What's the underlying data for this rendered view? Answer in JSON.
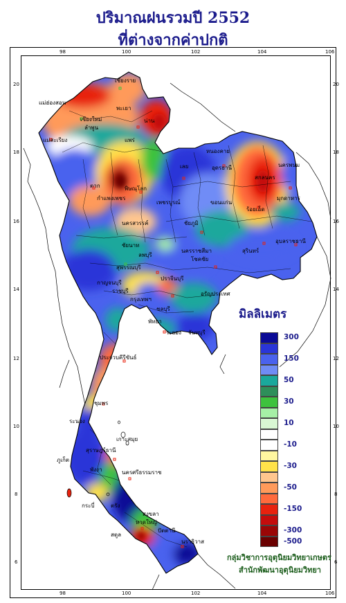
{
  "title_line1": "ปริมาณฝนรวมปี 2552",
  "title_line2": "ที่ต่างจากค่าปกติ",
  "x_ticks": [
    "98",
    "100",
    "102",
    "104",
    "106"
  ],
  "y_ticks": [
    "20",
    "18",
    "16",
    "14",
    "12",
    "10",
    "8",
    "6"
  ],
  "legend": {
    "title": "มิลลิเมตร",
    "items": [
      {
        "label": "300",
        "color": "#0a0a96"
      },
      {
        "label": "",
        "color": "#2a35d8"
      },
      {
        "label": "150",
        "color": "#4a62ee"
      },
      {
        "label": "",
        "color": "#6f8cf6"
      },
      {
        "label": "50",
        "color": "#1aa89c"
      },
      {
        "label": "",
        "color": "#2e8f5a"
      },
      {
        "label": "30",
        "color": "#3ec23e"
      },
      {
        "label": "",
        "color": "#a6f0a6"
      },
      {
        "label": "10",
        "color": "#d9f7d3"
      },
      {
        "label": "",
        "color": "#ffffff"
      },
      {
        "label": "-10",
        "color": "#ffffff"
      },
      {
        "label": "",
        "color": "#fff7a0"
      },
      {
        "label": "-30",
        "color": "#ffe24a"
      },
      {
        "label": "",
        "color": "#ffc68e"
      },
      {
        "label": "-50",
        "color": "#ff9a5a"
      },
      {
        "label": "",
        "color": "#ff6a3c"
      },
      {
        "label": "-150",
        "color": "#e8220e"
      },
      {
        "label": "",
        "color": "#c40c0c"
      },
      {
        "label": "-300",
        "color": "#9a0606"
      },
      {
        "label": "-500",
        "color": "#6a0000"
      }
    ]
  },
  "credit_line1": "กลุ่มวิชาการอุตุนิยมวิทยาเกษตร",
  "credit_line2": "สำนักพัฒนาอุตุนิยมวิทยา",
  "places": [
    "เชียงราย",
    "แม่ฮ่องสอน",
    "พะเยา",
    "เชียงใหม่",
    "ลำพูน",
    "น่าน",
    "แม่สะเรียง",
    "แพร่",
    "ตาก",
    "หนองคาย",
    "เลย",
    "อุดรธานี",
    "นครพนม",
    "สกลนคร",
    "พิษณุโลก",
    "กำแพงเพชร",
    "เพชรบูรณ์",
    "ขอนแก่น",
    "มุกดาหาร",
    "นครสวรรค์",
    "ชัยภูมิ",
    "ร้อยเอ็ด",
    "อุบลราชธานี",
    "สุรินทร์",
    "ชัยนาท",
    "นครราชสีมา",
    "โชคชัย",
    "ลพบุรี",
    "สุพรรณบุรี",
    "กาญจนบุรี",
    "ปราจีนบุรี",
    "อรัญประเทศ",
    "ราชบุรี",
    "กรุงเทพฯ",
    "ชลบุรี",
    "พัทยา",
    "ระยอง",
    "จันทบุรี",
    "ประจวบคีรีขันธ์",
    "ชุมพร",
    "ระนอง",
    "เกาะสมุย",
    "สุราษฎร์ธานี",
    "ภูเก็ต",
    "พังงา",
    "นครศรีธรรมราช",
    "กระบี่",
    "ตรัง",
    "สงขลา",
    "หาดใหญ่",
    "ปัตตานี",
    "นราธิวาส",
    "สตูล"
  ]
}
